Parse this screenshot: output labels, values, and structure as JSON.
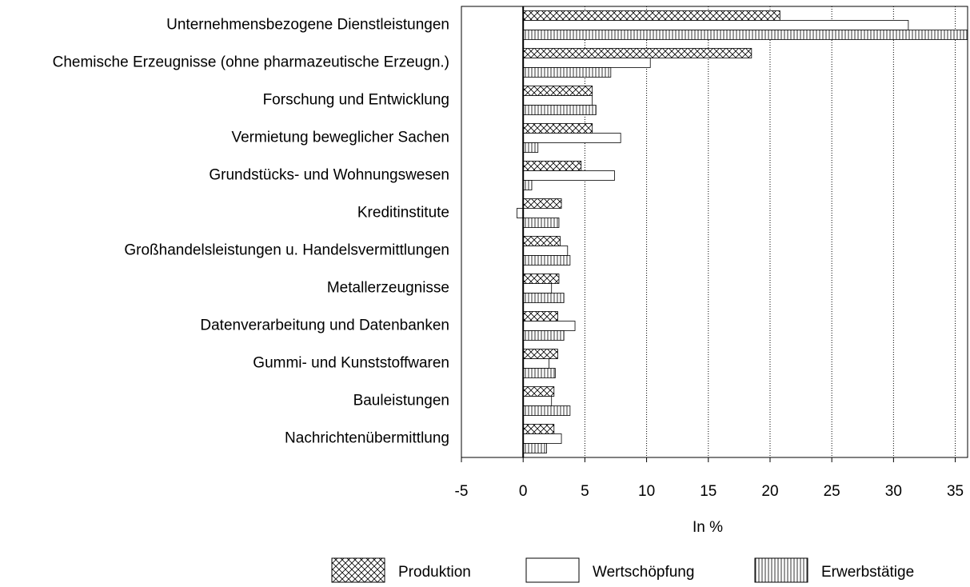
{
  "chart_data": {
    "type": "hbar",
    "x_label": "In %",
    "categories": [
      "Unternehmensbezogene Dienstleistungen",
      "Chemische Erzeugnisse (ohne pharmazeutische Erzeugn.)",
      "Forschung und Entwicklung",
      "Vermietung beweglicher Sachen",
      "Grundstücks- und Wohnungswesen",
      "Kreditinstitute",
      "Großhandelsleistungen u. Handelsvermittlungen",
      "Metallerzeugnisse",
      "Datenverarbeitung und Datenbanken",
      "Gummi- und Kunststoffwaren",
      "Bauleistungen",
      "Nachrichtenübermittlung"
    ],
    "series": [
      {
        "name": "Produktion",
        "color": "#000000",
        "pattern": "crosshatch",
        "values": [
          20.8,
          18.5,
          5.6,
          5.6,
          4.7,
          3.1,
          3.0,
          2.9,
          2.8,
          2.8,
          2.5,
          2.5
        ]
      },
      {
        "name": "Wertschöpfung",
        "color": "#000000",
        "pattern": "none",
        "values": [
          31.2,
          10.3,
          5.6,
          7.9,
          7.4,
          -0.5,
          3.6,
          2.3,
          4.2,
          2.1,
          2.3,
          3.1
        ]
      },
      {
        "name": "Erwerbstätige",
        "color": "#000000",
        "pattern": "vertical",
        "values": [
          36.0,
          7.1,
          5.9,
          1.2,
          0.7,
          2.9,
          3.8,
          3.3,
          3.3,
          2.6,
          3.8,
          1.9
        ]
      }
    ],
    "xlim": [
      -5,
      36
    ],
    "xticks": [
      -5,
      0,
      5,
      10,
      15,
      20,
      25,
      30,
      35
    ],
    "grid": true
  }
}
